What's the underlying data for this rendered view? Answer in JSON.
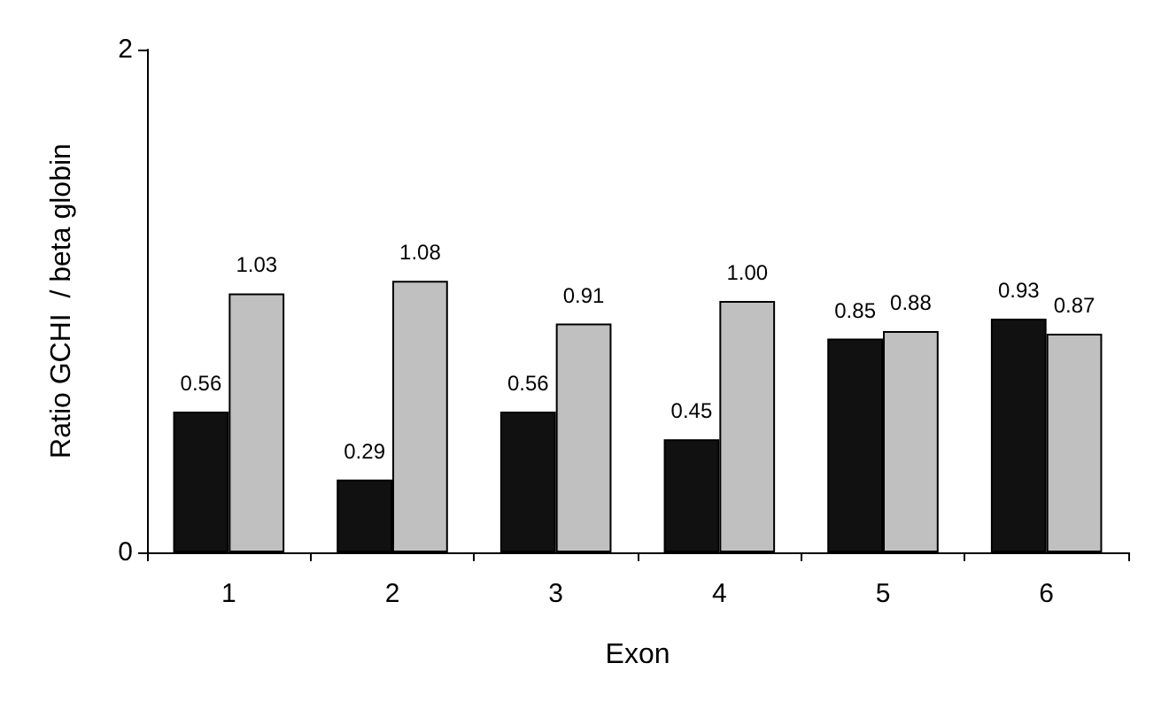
{
  "chart_data": {
    "type": "bar",
    "xlabel": "Exon",
    "ylabel": "Ratio GCHI  / beta globin",
    "categories": [
      "1",
      "2",
      "3",
      "4",
      "5",
      "6"
    ],
    "series": [
      {
        "color": "#111111",
        "values": [
          0.56,
          0.29,
          0.56,
          0.45,
          0.85,
          0.93
        ],
        "value_labels": [
          "0.56",
          "0.29",
          "0.56",
          "0.45",
          "0.85",
          "0.93"
        ]
      },
      {
        "color": "#c0c0c0",
        "values": [
          1.03,
          1.08,
          0.91,
          1.0,
          0.88,
          0.87
        ],
        "value_labels": [
          "1.03",
          "1.08",
          "0.91",
          "1.00",
          "0.88",
          "0.87"
        ]
      }
    ],
    "ylim": [
      0,
      2
    ],
    "yticks": [
      0,
      2
    ],
    "grid": false
  }
}
